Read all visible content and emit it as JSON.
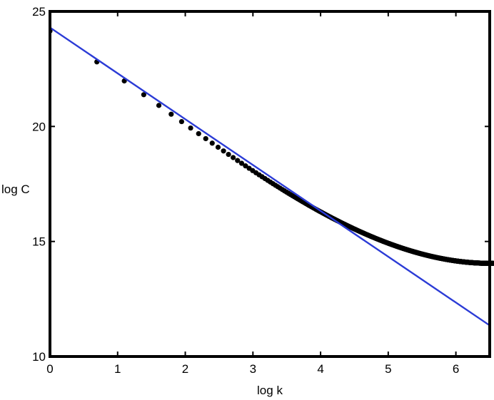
{
  "chart_data": {
    "type": "scatter",
    "title": "",
    "xlabel": "log k",
    "ylabel": "log C",
    "xlim": [
      0,
      6.5
    ],
    "ylim": [
      10,
      25
    ],
    "xticks": [
      "0",
      "1",
      "2",
      "3",
      "4",
      "5",
      "6"
    ],
    "yticks": [
      "10",
      "15",
      "20",
      "25"
    ],
    "grid": false,
    "legend": "none",
    "colors": {
      "points": "#000000",
      "fit_line": "#2b3bd6",
      "frame": "#000000"
    },
    "series": [
      {
        "type": "scatter",
        "curve": {
          "x0": 0,
          "y0": 24.15,
          "x1": 6.5,
          "y1": 14.05,
          "initial_slope": -1.85,
          "final_slope": 0
        },
        "n_points": 700
      },
      {
        "type": "line",
        "x": [
          0,
          6.5
        ],
        "y": [
          24.3,
          11.35
        ]
      }
    ]
  }
}
